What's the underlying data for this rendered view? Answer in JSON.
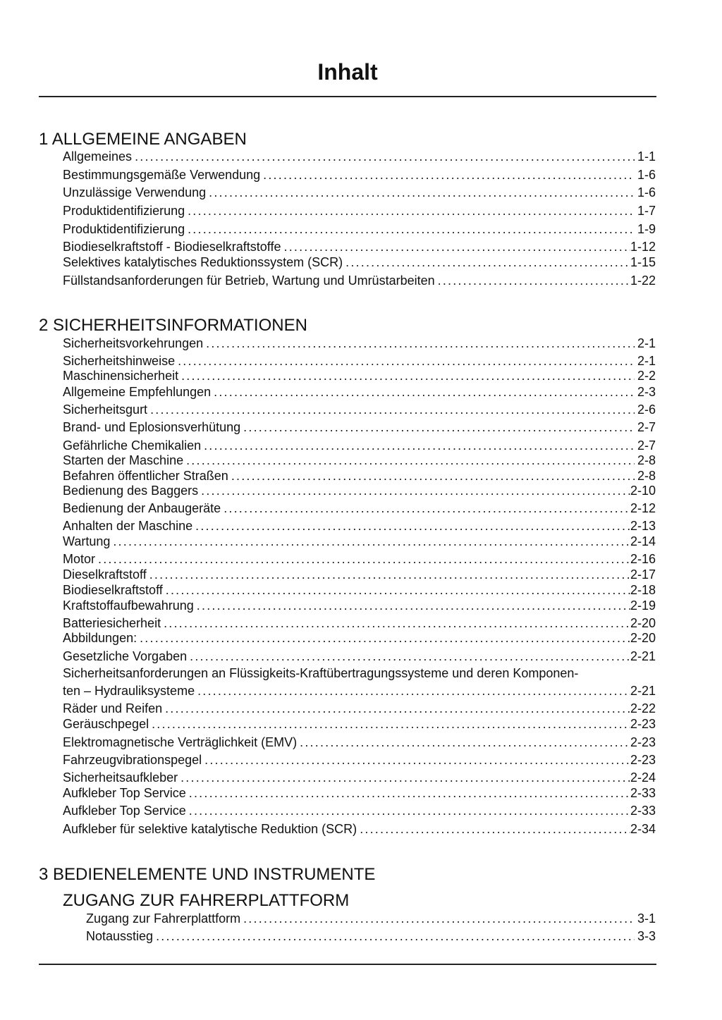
{
  "title": "Inhalt",
  "sections": [
    {
      "heading": "1 ALLGEMEINE ANGABEN",
      "entries": [
        {
          "label": "Allgemeines",
          "page": "1-1"
        },
        {
          "label": "Bestimmungsgemäße Verwendung",
          "page": "1-6"
        },
        {
          "label": "Unzulässige Verwendung",
          "page": "1-6"
        },
        {
          "label": "Produktidentifizierung",
          "page": "1-7"
        },
        {
          "label": "Produktidentifizierung",
          "page": "1-9"
        },
        {
          "label": "Biodieselkraftstoff - Biodieselkraftstoffe",
          "page": "1-12"
        },
        {
          "label": "Selektives katalytisches Reduktionssystem (SCR)",
          "page": "1-15"
        },
        {
          "label": "Füllstandsanforderungen für Betrieb, Wartung und Umrüstarbeiten",
          "page": "1-22"
        }
      ]
    },
    {
      "heading": "2 SICHERHEITSINFORMATIONEN",
      "entries": [
        {
          "label": "Sicherheitsvorkehrungen",
          "page": "2-1"
        },
        {
          "label": "Sicherheitshinweise",
          "page": "2-1"
        },
        {
          "label": "Maschinensicherheit",
          "page": "2-2"
        },
        {
          "label": "Allgemeine Empfehlungen",
          "page": "2-3"
        },
        {
          "label": "Sicherheitsgurt",
          "page": "2-6"
        },
        {
          "label": "Brand- und Eplosionsverhütung",
          "page": "2-7"
        },
        {
          "label": "Gefährliche Chemikalien",
          "page": "2-7"
        },
        {
          "label": "Starten der Maschine",
          "page": "2-8"
        },
        {
          "label": "Befahren öffentlicher Straßen",
          "page": "2-8"
        },
        {
          "label": "Bedienung des Baggers",
          "page": "2-10"
        },
        {
          "label": "Bedienung der Anbaugeräte",
          "page": "2-12"
        },
        {
          "label": "Anhalten der Maschine",
          "page": "2-13"
        },
        {
          "label": "Wartung",
          "page": "2-14"
        },
        {
          "label": "Motor",
          "page": "2-16"
        },
        {
          "label": "Dieselkraftstoff",
          "page": "2-17"
        },
        {
          "label": "Biodieselkraftstoff",
          "page": "2-18"
        },
        {
          "label": "Kraftstoffaufbewahrung",
          "page": "2-19"
        },
        {
          "label": "Batteriesicherheit",
          "page": "2-20"
        },
        {
          "label": "Abbildungen:",
          "page": "2-20"
        },
        {
          "label": "Gesetzliche Vorgaben",
          "page": "2-21"
        },
        {
          "label_first_line": "Sicherheitsanforderungen an Flüssigkeits-Kraftübertragungssysteme und deren Komponen-",
          "label": "ten – Hydrauliksysteme",
          "page": "2-21"
        },
        {
          "label": "Räder und Reifen",
          "page": "2-22"
        },
        {
          "label": "Geräuschpegel",
          "page": "2-23"
        },
        {
          "label": "Elektromagnetische Verträglichkeit (EMV)",
          "page": "2-23"
        },
        {
          "label": "Fahrzeugvibrationspegel",
          "page": "2-23"
        },
        {
          "label": "Sicherheitsaufkleber",
          "page": "2-24"
        },
        {
          "label": "Aufkleber Top Service",
          "page": "2-33"
        },
        {
          "label": "Aufkleber Top Service",
          "page": "2-33"
        },
        {
          "label": "Aufkleber für selektive katalytische Reduktion (SCR)",
          "page": "2-34"
        }
      ]
    },
    {
      "heading": "3 BEDIENELEMENTE UND INSTRUMENTE",
      "subheading": "ZUGANG ZUR FAHRERPLATTFORM",
      "entries": [
        {
          "label": "Zugang zur Fahrerplattform",
          "page": "3-1"
        },
        {
          "label": "Notausstieg",
          "page": "3-3"
        }
      ]
    }
  ]
}
